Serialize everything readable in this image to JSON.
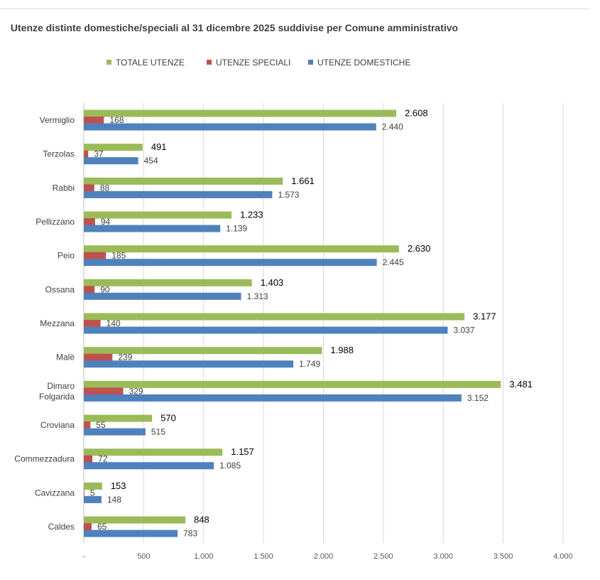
{
  "chart_data": {
    "type": "bar",
    "orientation": "horizontal",
    "title": "Utenze distinte domestiche/speciali al 31 dicembre 2025 suddivise per Comune amministrativo",
    "categories": [
      "Vermiglio",
      "Terzolas",
      "Rabbi",
      "Pellizzano",
      "Peio",
      "Ossana",
      "Mezzana",
      "Malè",
      "Dimaro Folgarida",
      "Croviana",
      "Commezzadura",
      "Cavizzana",
      "Caldes"
    ],
    "series": [
      {
        "name": "TOTALE UTENZE",
        "color": "#9bbb59",
        "values": [
          2608,
          491,
          1661,
          1233,
          2630,
          1403,
          3177,
          1988,
          3481,
          570,
          1157,
          153,
          848
        ],
        "labels": [
          "2.608",
          "491",
          "1.661",
          "1.233",
          "2.630",
          "1.403",
          "3.177",
          "1.988",
          "3.481",
          "570",
          "1.157",
          "153",
          "848"
        ]
      },
      {
        "name": "UTENZE SPECIALI",
        "color": "#c0504d",
        "values": [
          168,
          37,
          88,
          94,
          185,
          90,
          140,
          239,
          329,
          55,
          72,
          5,
          65
        ],
        "labels": [
          "168",
          "37",
          "88",
          "94",
          "185",
          "90",
          "140",
          "239",
          "329",
          "55",
          "72",
          "5",
          "65"
        ]
      },
      {
        "name": "UTENZE DOMESTICHE",
        "color": "#4f81bd",
        "values": [
          2440,
          454,
          1573,
          1139,
          2445,
          1313,
          3037,
          1749,
          3152,
          515,
          1085,
          148,
          783
        ],
        "labels": [
          "2.440",
          "454",
          "1.573",
          "1.139",
          "2.445",
          "1.313",
          "3.037",
          "1.749",
          "3.152",
          "515",
          "1.085",
          "148",
          "783"
        ]
      }
    ],
    "xlim": [
      0,
      4000
    ],
    "xticks": [
      0,
      500,
      1000,
      1500,
      2000,
      2500,
      3000,
      3500,
      4000
    ],
    "xtick_labels": [
      "-",
      "500",
      "1.000",
      "1.500",
      "2.000",
      "2.500",
      "3.000",
      "3.500",
      "4.000"
    ],
    "grid": "vertical",
    "legend_position": "top"
  }
}
